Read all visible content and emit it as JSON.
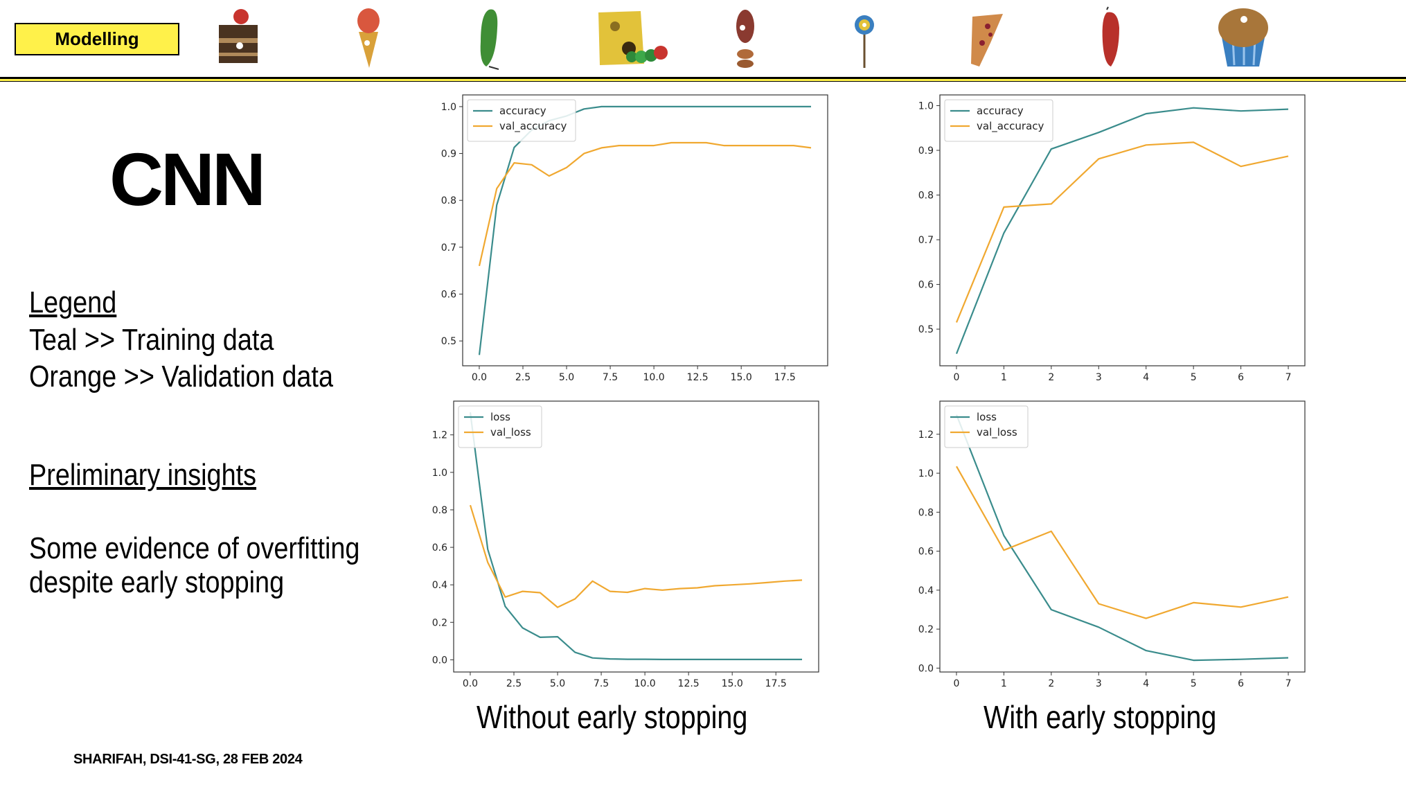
{
  "header": {
    "section_label": "Modelling",
    "food_icons": [
      "chocolate-cake-icon",
      "ice-cream-cone-icon",
      "pickle-icon",
      "swiss-cheese-caterpillar-icon",
      "salami-cookies-icon",
      "lollipop-icon",
      "cherry-pie-icon",
      "sausage-icon",
      "cupcake-icon"
    ],
    "accent_color": "#fff14a"
  },
  "title": "CNN",
  "legend": {
    "heading": "Legend",
    "lines": [
      "Teal >> Training data",
      "Orange >> Validation data"
    ]
  },
  "insights": {
    "heading": "Preliminary insights",
    "lines": [
      "Some evidence of overfitting",
      "despite early stopping"
    ]
  },
  "captions": {
    "left": "Without early stopping",
    "right": "With early stopping"
  },
  "footer": "SHARIFAH, DSI-41-SG, 28 FEB 2024",
  "chart_data": [
    {
      "type": "line",
      "x": [
        0,
        1,
        2,
        3,
        4,
        5,
        6,
        7,
        8,
        9,
        10,
        11,
        12,
        13,
        14,
        15,
        16,
        17,
        18,
        19
      ],
      "xticks": [
        0.0,
        2.5,
        5.0,
        7.5,
        10.0,
        12.5,
        15.0,
        17.5
      ],
      "xlim": [
        -0.95,
        19.95
      ],
      "yticks": [
        0.5,
        0.6,
        0.7,
        0.8,
        0.9,
        1.0
      ],
      "ylim": [
        0.447,
        1.025
      ],
      "tick_decimals": 1,
      "legend_position": "upper-left",
      "series": [
        {
          "name": "accuracy",
          "color": "#3a8c8c",
          "values": [
            0.47,
            0.79,
            0.913,
            0.95,
            0.97,
            0.98,
            0.995,
            1.0,
            1.0,
            1.0,
            1.0,
            1.0,
            1.0,
            1.0,
            1.0,
            1.0,
            1.0,
            1.0,
            1.0,
            1.0
          ]
        },
        {
          "name": "val_accuracy",
          "color": "#f0a830",
          "values": [
            0.66,
            0.825,
            0.88,
            0.876,
            0.852,
            0.87,
            0.9,
            0.912,
            0.917,
            0.917,
            0.917,
            0.923,
            0.923,
            0.923,
            0.917,
            0.917,
            0.917,
            0.917,
            0.917,
            0.912
          ]
        }
      ]
    },
    {
      "type": "line",
      "x": [
        0,
        1,
        2,
        3,
        4,
        5,
        6,
        7
      ],
      "xticks": [
        0,
        1,
        2,
        3,
        4,
        5,
        6,
        7
      ],
      "xlim": [
        -0.35,
        7.35
      ],
      "yticks": [
        0.5,
        0.6,
        0.7,
        0.8,
        0.9,
        1.0
      ],
      "ylim": [
        0.418,
        1.024
      ],
      "tick_decimals": 1,
      "legend_position": "upper-left",
      "series": [
        {
          "name": "accuracy",
          "color": "#3a8c8c",
          "values": [
            0.445,
            0.715,
            0.903,
            0.94,
            0.982,
            0.995,
            0.988,
            0.992
          ]
        },
        {
          "name": "val_accuracy",
          "color": "#f0a830",
          "values": [
            0.515,
            0.773,
            0.78,
            0.881,
            0.912,
            0.918,
            0.864,
            0.887
          ]
        }
      ]
    },
    {
      "type": "line",
      "x": [
        0,
        1,
        2,
        3,
        4,
        5,
        6,
        7,
        8,
        9,
        10,
        11,
        12,
        13,
        14,
        15,
        16,
        17,
        18,
        19
      ],
      "xticks": [
        0.0,
        2.5,
        5.0,
        7.5,
        10.0,
        12.5,
        15.0,
        17.5
      ],
      "xlim": [
        -0.95,
        19.95
      ],
      "yticks": [
        0.0,
        0.2,
        0.4,
        0.6,
        0.8,
        1.0,
        1.2
      ],
      "ylim": [
        -0.065,
        1.38
      ],
      "tick_decimals": 1,
      "legend_position": "upper-left",
      "series": [
        {
          "name": "loss",
          "color": "#3a8c8c",
          "values": [
            1.32,
            0.59,
            0.285,
            0.17,
            0.12,
            0.123,
            0.04,
            0.01,
            0.005,
            0.003,
            0.003,
            0.002,
            0.002,
            0.002,
            0.002,
            0.002,
            0.002,
            0.002,
            0.002,
            0.002
          ]
        },
        {
          "name": "val_loss",
          "color": "#f0a830",
          "values": [
            0.825,
            0.52,
            0.335,
            0.365,
            0.358,
            0.28,
            0.325,
            0.42,
            0.365,
            0.36,
            0.38,
            0.372,
            0.38,
            0.384,
            0.395,
            0.4,
            0.405,
            0.412,
            0.42,
            0.425
          ]
        }
      ]
    },
    {
      "type": "line",
      "x": [
        0,
        1,
        2,
        3,
        4,
        5,
        6,
        7
      ],
      "xticks": [
        0,
        1,
        2,
        3,
        4,
        5,
        6,
        7
      ],
      "xlim": [
        -0.35,
        7.35
      ],
      "yticks": [
        0.0,
        0.2,
        0.4,
        0.6,
        0.8,
        1.0,
        1.2
      ],
      "ylim": [
        -0.02,
        1.37
      ],
      "tick_decimals": 1,
      "legend_position": "upper-left",
      "series": [
        {
          "name": "loss",
          "color": "#3a8c8c",
          "values": [
            1.3,
            0.68,
            0.3,
            0.21,
            0.09,
            0.04,
            0.045,
            0.053
          ]
        },
        {
          "name": "val_loss",
          "color": "#f0a830",
          "values": [
            1.035,
            0.605,
            0.702,
            0.33,
            0.255,
            0.336,
            0.313,
            0.365
          ]
        }
      ]
    }
  ]
}
